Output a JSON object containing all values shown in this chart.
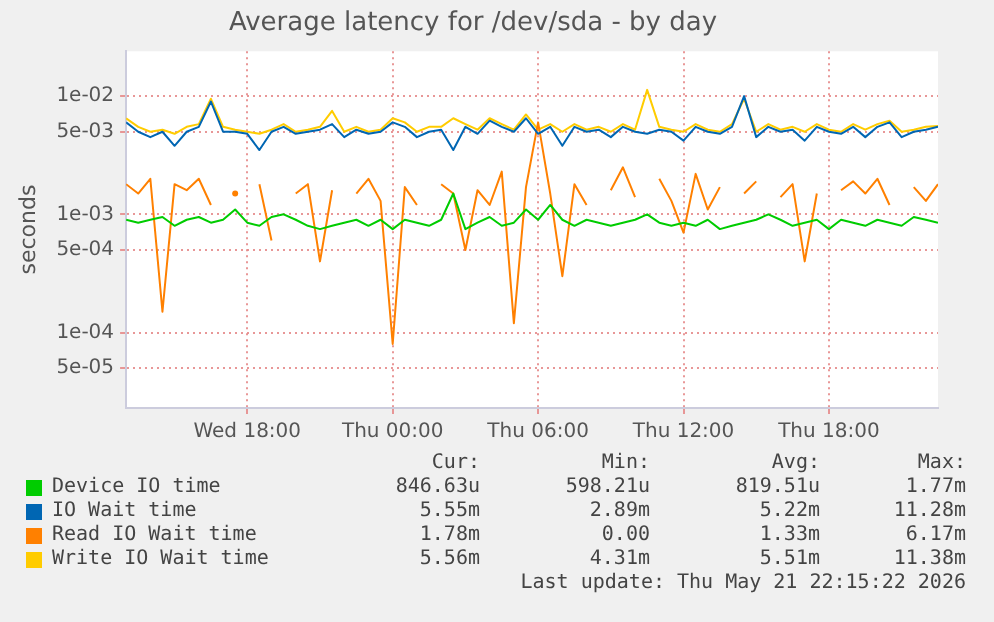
{
  "chart_data": {
    "type": "line",
    "title": "Average latency for /dev/sda - by day",
    "ylabel": "seconds",
    "log": "y",
    "grid": true,
    "legend": "bottom",
    "marker": "none",
    "line_style": "solid",
    "x": [
      "2026-05-20T13:00",
      "2026-05-20T13:30",
      "2026-05-20T14:00",
      "2026-05-20T14:30",
      "2026-05-20T15:00",
      "2026-05-20T15:30",
      "2026-05-20T16:00",
      "2026-05-20T16:30",
      "2026-05-20T17:00",
      "2026-05-20T17:30",
      "2026-05-20T18:00",
      "2026-05-20T18:30",
      "2026-05-20T19:00",
      "2026-05-20T19:30",
      "2026-05-20T20:00",
      "2026-05-20T20:30",
      "2026-05-20T21:00",
      "2026-05-20T21:30",
      "2026-05-20T22:00",
      "2026-05-20T22:30",
      "2026-05-20T23:00",
      "2026-05-20T23:30",
      "2026-05-21T00:00",
      "2026-05-21T00:30",
      "2026-05-21T01:00",
      "2026-05-21T01:30",
      "2026-05-21T02:00",
      "2026-05-21T02:30",
      "2026-05-21T03:00",
      "2026-05-21T03:30",
      "2026-05-21T04:00",
      "2026-05-21T04:30",
      "2026-05-21T05:00",
      "2026-05-21T05:30",
      "2026-05-21T06:00",
      "2026-05-21T06:30",
      "2026-05-21T07:00",
      "2026-05-21T07:30",
      "2026-05-21T08:00",
      "2026-05-21T08:30",
      "2026-05-21T09:00",
      "2026-05-21T09:30",
      "2026-05-21T10:00",
      "2026-05-21T10:30",
      "2026-05-21T11:00",
      "2026-05-21T11:30",
      "2026-05-21T12:00",
      "2026-05-21T12:30",
      "2026-05-21T13:00",
      "2026-05-21T13:30",
      "2026-05-21T14:00",
      "2026-05-21T14:30",
      "2026-05-21T15:00",
      "2026-05-21T15:30",
      "2026-05-21T16:00",
      "2026-05-21T16:30",
      "2026-05-21T17:00",
      "2026-05-21T17:30",
      "2026-05-21T18:00",
      "2026-05-21T18:30",
      "2026-05-21T19:00",
      "2026-05-21T19:30",
      "2026-05-21T20:00",
      "2026-05-21T20:30",
      "2026-05-21T21:00",
      "2026-05-21T21:30",
      "2026-05-21T22:00",
      "2026-05-21T22:30"
    ],
    "xlim": [
      "2026-05-20T13:00",
      "2026-05-21T22:30"
    ],
    "xticks": [
      {
        "value": "2026-05-20T18:00",
        "label": "Wed 18:00"
      },
      {
        "value": "2026-05-21T00:00",
        "label": "Thu 00:00"
      },
      {
        "value": "2026-05-21T06:00",
        "label": "Thu 06:00"
      },
      {
        "value": "2026-05-21T12:00",
        "label": "Thu 12:00"
      },
      {
        "value": "2026-05-21T18:00",
        "label": "Thu 18:00"
      }
    ],
    "ylim": [
      2.3e-05,
      0.024
    ],
    "yticks": [
      {
        "value": 5e-05,
        "label": "5e-05"
      },
      {
        "value": 0.0001,
        "label": "1e-04"
      },
      {
        "value": 0.0005,
        "label": "5e-04"
      },
      {
        "value": 0.001,
        "label": "1e-03"
      },
      {
        "value": 0.005,
        "label": "5e-03"
      },
      {
        "value": 0.01,
        "label": "1e-02"
      }
    ],
    "series": [
      {
        "name": "Device IO time",
        "color": "#00cc00",
        "values": [
          0.0009,
          0.00085,
          0.0009,
          0.00095,
          0.0008,
          0.0009,
          0.00095,
          0.00085,
          0.0009,
          0.0011,
          0.00085,
          0.0008,
          0.00095,
          0.001,
          0.0009,
          0.0008,
          0.00075,
          0.0008,
          0.00085,
          0.0009,
          0.0008,
          0.0009,
          0.00075,
          0.0009,
          0.00085,
          0.0008,
          0.0009,
          0.0015,
          0.00075,
          0.00085,
          0.00095,
          0.0008,
          0.00085,
          0.0011,
          0.0009,
          0.0012,
          0.0009,
          0.0008,
          0.0009,
          0.00085,
          0.0008,
          0.00085,
          0.0009,
          0.001,
          0.00085,
          0.0008,
          0.00085,
          0.0008,
          0.0009,
          0.00075,
          0.0008,
          0.00085,
          0.0009,
          0.001,
          0.0009,
          0.0008,
          0.00085,
          0.0009,
          0.00075,
          0.0009,
          0.00085,
          0.0008,
          0.0009,
          0.00085,
          0.0008,
          0.00095,
          0.0009,
          0.00085
        ]
      },
      {
        "name": "IO Wait time",
        "color": "#0066b3",
        "values": [
          0.006,
          0.005,
          0.0045,
          0.005,
          0.0038,
          0.005,
          0.0055,
          0.009,
          0.005,
          0.005,
          0.0048,
          0.0035,
          0.005,
          0.0055,
          0.0048,
          0.005,
          0.0052,
          0.0058,
          0.0045,
          0.0052,
          0.0048,
          0.005,
          0.006,
          0.0055,
          0.0045,
          0.005,
          0.0052,
          0.0035,
          0.0055,
          0.0048,
          0.0062,
          0.0055,
          0.005,
          0.0065,
          0.0048,
          0.0055,
          0.0038,
          0.0055,
          0.005,
          0.0052,
          0.0045,
          0.0055,
          0.005,
          0.0048,
          0.0052,
          0.005,
          0.0042,
          0.0055,
          0.005,
          0.0048,
          0.0055,
          0.01,
          0.0045,
          0.0055,
          0.005,
          0.0052,
          0.0042,
          0.0055,
          0.005,
          0.0048,
          0.0055,
          0.0045,
          0.0055,
          0.006,
          0.0045,
          0.005,
          0.0052,
          0.0055
        ]
      },
      {
        "name": "Read IO Wait time",
        "color": "#ff8000",
        "values": [
          0.0018,
          0.0015,
          0.002,
          0.00015,
          0.0018,
          0.0016,
          0.002,
          0.0012,
          null,
          0.0015,
          null,
          0.0018,
          0.0006,
          null,
          0.0015,
          0.0018,
          0.0004,
          0.0016,
          null,
          0.0015,
          0.002,
          0.0013,
          8e-05,
          0.0017,
          0.0012,
          null,
          0.0018,
          0.0015,
          0.0005,
          0.0016,
          0.0012,
          0.0023,
          0.00012,
          0.0017,
          0.006,
          0.0015,
          0.0003,
          0.0018,
          0.0012,
          null,
          0.0016,
          0.0025,
          0.0014,
          null,
          0.002,
          0.0013,
          0.0007,
          0.0022,
          0.0011,
          0.0017,
          null,
          0.0015,
          0.0019,
          null,
          0.0014,
          0.0018,
          0.0004,
          0.0015,
          null,
          0.0016,
          0.0019,
          0.0015,
          0.002,
          0.0012,
          null,
          0.0017,
          0.0013,
          0.0018
        ]
      },
      {
        "name": "Write IO Wait time",
        "color": "#ffcc00",
        "values": [
          0.0065,
          0.0055,
          0.005,
          0.0052,
          0.0048,
          0.0055,
          0.0058,
          0.0095,
          0.0055,
          0.0052,
          0.005,
          0.0048,
          0.0052,
          0.0058,
          0.005,
          0.0052,
          0.0055,
          0.0075,
          0.005,
          0.0055,
          0.005,
          0.0052,
          0.0065,
          0.006,
          0.005,
          0.0055,
          0.0055,
          0.0065,
          0.0058,
          0.0052,
          0.0065,
          0.0058,
          0.0052,
          0.007,
          0.0052,
          0.0058,
          0.005,
          0.0058,
          0.0052,
          0.0055,
          0.005,
          0.0058,
          0.0052,
          0.0113,
          0.0055,
          0.0052,
          0.005,
          0.0058,
          0.0052,
          0.005,
          0.0058,
          0.0095,
          0.005,
          0.0058,
          0.0052,
          0.0055,
          0.005,
          0.0058,
          0.0052,
          0.005,
          0.0058,
          0.0052,
          0.0058,
          0.0062,
          0.005,
          0.0052,
          0.0055,
          0.0056
        ]
      }
    ],
    "annotations": [
      "Cur:",
      "Min:",
      "Avg:",
      "Max:",
      "846.63u",
      "598.21u",
      "819.51u",
      "1.77m",
      "5.55m",
      "2.89m",
      "5.22m",
      "11.28m",
      "1.78m",
      "0.00",
      "1.33m",
      "6.17m",
      "5.56m",
      "4.31m",
      "5.51m",
      "11.38m",
      "Last update: Thu May 21 22:15:22 2026"
    ]
  }
}
